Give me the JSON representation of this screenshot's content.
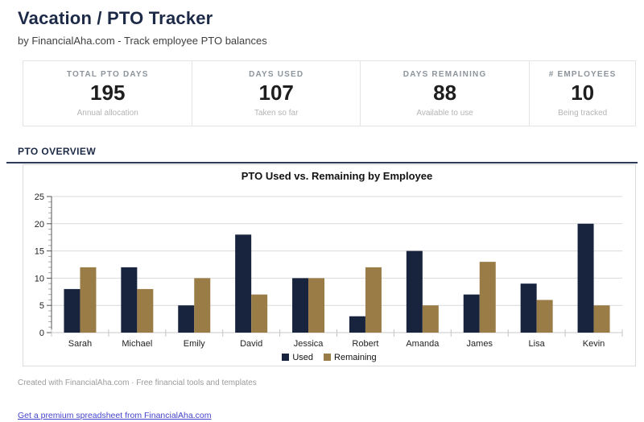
{
  "header": {
    "title": "Vacation / PTO Tracker",
    "subtitle": "by FinancialAha.com - Track employee PTO balances"
  },
  "stats": {
    "cards": [
      {
        "label": "TOTAL PTO DAYS",
        "value": "195",
        "sub": "Annual allocation"
      },
      {
        "label": "DAYS USED",
        "value": "107",
        "sub": "Taken so far"
      },
      {
        "label": "DAYS REMAINING",
        "value": "88",
        "sub": "Available to use"
      },
      {
        "label": "# EMPLOYEES",
        "value": "10",
        "sub": "Being tracked"
      }
    ]
  },
  "section": {
    "title": "PTO OVERVIEW"
  },
  "chart_data": {
    "type": "bar",
    "title": "PTO Used vs. Remaining by Employee",
    "categories": [
      "Sarah",
      "Michael",
      "Emily",
      "David",
      "Jessica",
      "Robert",
      "Amanda",
      "James",
      "Lisa",
      "Kevin"
    ],
    "series": [
      {
        "name": "Used",
        "color": "#18243e",
        "values": [
          8,
          12,
          5,
          18,
          10,
          3,
          15,
          7,
          9,
          20
        ]
      },
      {
        "name": "Remaining",
        "color": "#9a7c46",
        "values": [
          12,
          8,
          10,
          7,
          10,
          12,
          5,
          13,
          6,
          5
        ]
      }
    ],
    "xlabel": "",
    "ylabel": "",
    "ylim": [
      0,
      25
    ],
    "yticks": [
      0,
      5,
      10,
      15,
      20,
      25
    ],
    "minor_tick_step": 1,
    "grid": true,
    "legend_position": "bottom"
  },
  "footer": {
    "credit": "Created with FinancialAha.com · Free financial tools and templates",
    "link": "Get a premium spreadsheet from FinancialAha.com"
  },
  "colors": {
    "navy": "#18243e",
    "tan": "#9a7c46",
    "accent_rule": "#2c3b5a",
    "grid": "#d9d9d9",
    "axis": "#555555",
    "link": "#4343cc"
  }
}
